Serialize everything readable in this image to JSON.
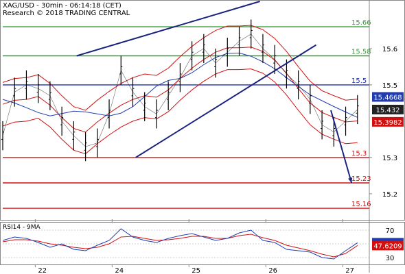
{
  "header": {
    "title": "XAG/USD - 30min - 06:14:18 (CET)",
    "credit": "Research © 2018 TRADING CENTRAL"
  },
  "chart_data": {
    "type": "line",
    "title": "XAG/USD - 30min - 06:14:18 (CET)",
    "ylim": [
      15.13,
      15.73
    ],
    "x_tick_labels": [
      "22",
      "24",
      "25",
      "26",
      "27"
    ],
    "y_tick_labels": [
      15.6,
      15.5,
      15.3,
      15.2
    ],
    "price_series": {
      "name": "XAG/USD",
      "x": [
        0,
        4,
        8,
        12,
        16,
        20,
        24,
        28,
        32,
        36,
        40,
        44,
        48,
        52,
        56,
        60,
        64,
        68,
        72,
        76,
        80,
        84,
        88,
        92,
        96,
        100,
        104,
        108,
        112,
        116,
        120
      ],
      "values": [
        15.36,
        15.48,
        15.5,
        15.49,
        15.47,
        15.4,
        15.36,
        15.33,
        15.34,
        15.42,
        15.54,
        15.48,
        15.44,
        15.42,
        15.47,
        15.52,
        15.58,
        15.6,
        15.56,
        15.59,
        15.62,
        15.64,
        15.6,
        15.57,
        15.53,
        15.5,
        15.46,
        15.39,
        15.37,
        15.4,
        15.432
      ]
    },
    "horizontal_levels": [
      {
        "value": 15.66,
        "label": "15.66",
        "color": "#2e9e2e"
      },
      {
        "value": 15.58,
        "label": "15.58",
        "color": "#2e9e2e"
      },
      {
        "value": 15.5,
        "label": "15.5",
        "color": "#1f2fb0"
      },
      {
        "value": 15.3,
        "label": "15.3",
        "color": "#d01010"
      },
      {
        "value": 15.23,
        "label": "15.23",
        "color": "#d01010"
      },
      {
        "value": 15.16,
        "label": "15.16",
        "color": "#d01010"
      }
    ],
    "price_tags": [
      {
        "label": "15.4668",
        "value": 15.4668,
        "color": "#1f3db0"
      },
      {
        "label": "15.432",
        "value": 15.432,
        "color": "#222222"
      },
      {
        "label": "15.3982",
        "value": 15.3982,
        "color": "#d01010"
      }
    ],
    "trendlines": [
      {
        "from": [
          25,
          15.58
        ],
        "to": [
          87,
          15.73
        ],
        "color": "#1a237e"
      },
      {
        "from": [
          45,
          15.3
        ],
        "to": [
          106,
          15.61
        ],
        "color": "#1a237e"
      }
    ],
    "forecast_arrow": {
      "from": [
        111,
        15.43
      ],
      "to": [
        118,
        15.23
      ],
      "color": "#1a237e"
    },
    "rsi": {
      "name": "RSI14 - 9MA",
      "y_tick_labels": [
        70,
        50,
        30
      ],
      "ylim": [
        20,
        80
      ],
      "x": [
        0,
        4,
        8,
        12,
        16,
        20,
        24,
        28,
        32,
        36,
        40,
        44,
        48,
        52,
        56,
        60,
        64,
        68,
        72,
        76,
        80,
        84,
        88,
        92,
        96,
        100,
        104,
        108,
        112,
        116,
        120
      ],
      "rsi_values": [
        55,
        60,
        58,
        52,
        45,
        50,
        42,
        40,
        48,
        55,
        72,
        60,
        55,
        52,
        58,
        62,
        65,
        60,
        55,
        58,
        66,
        70,
        55,
        52,
        42,
        40,
        38,
        30,
        28,
        40,
        51.6374
      ],
      "ma_values": [
        53,
        56,
        56,
        54,
        50,
        48,
        45,
        43,
        45,
        50,
        60,
        61,
        58,
        55,
        56,
        58,
        61,
        61,
        58,
        58,
        62,
        64,
        59,
        55,
        48,
        44,
        40,
        35,
        31,
        36,
        47.6209
      ],
      "tags": [
        {
          "label": "51.6374",
          "value": 51.6374,
          "color": "#1f3db0"
        },
        {
          "label": "47.6209",
          "value": 47.6209,
          "color": "#d01010"
        }
      ]
    },
    "colors": {
      "price": "#000000",
      "bollinger": "#d01010",
      "ma": "#1f3db0",
      "rsi": "#1f3db0",
      "rsi_ma": "#d01010",
      "grid": "#cccccc"
    }
  }
}
